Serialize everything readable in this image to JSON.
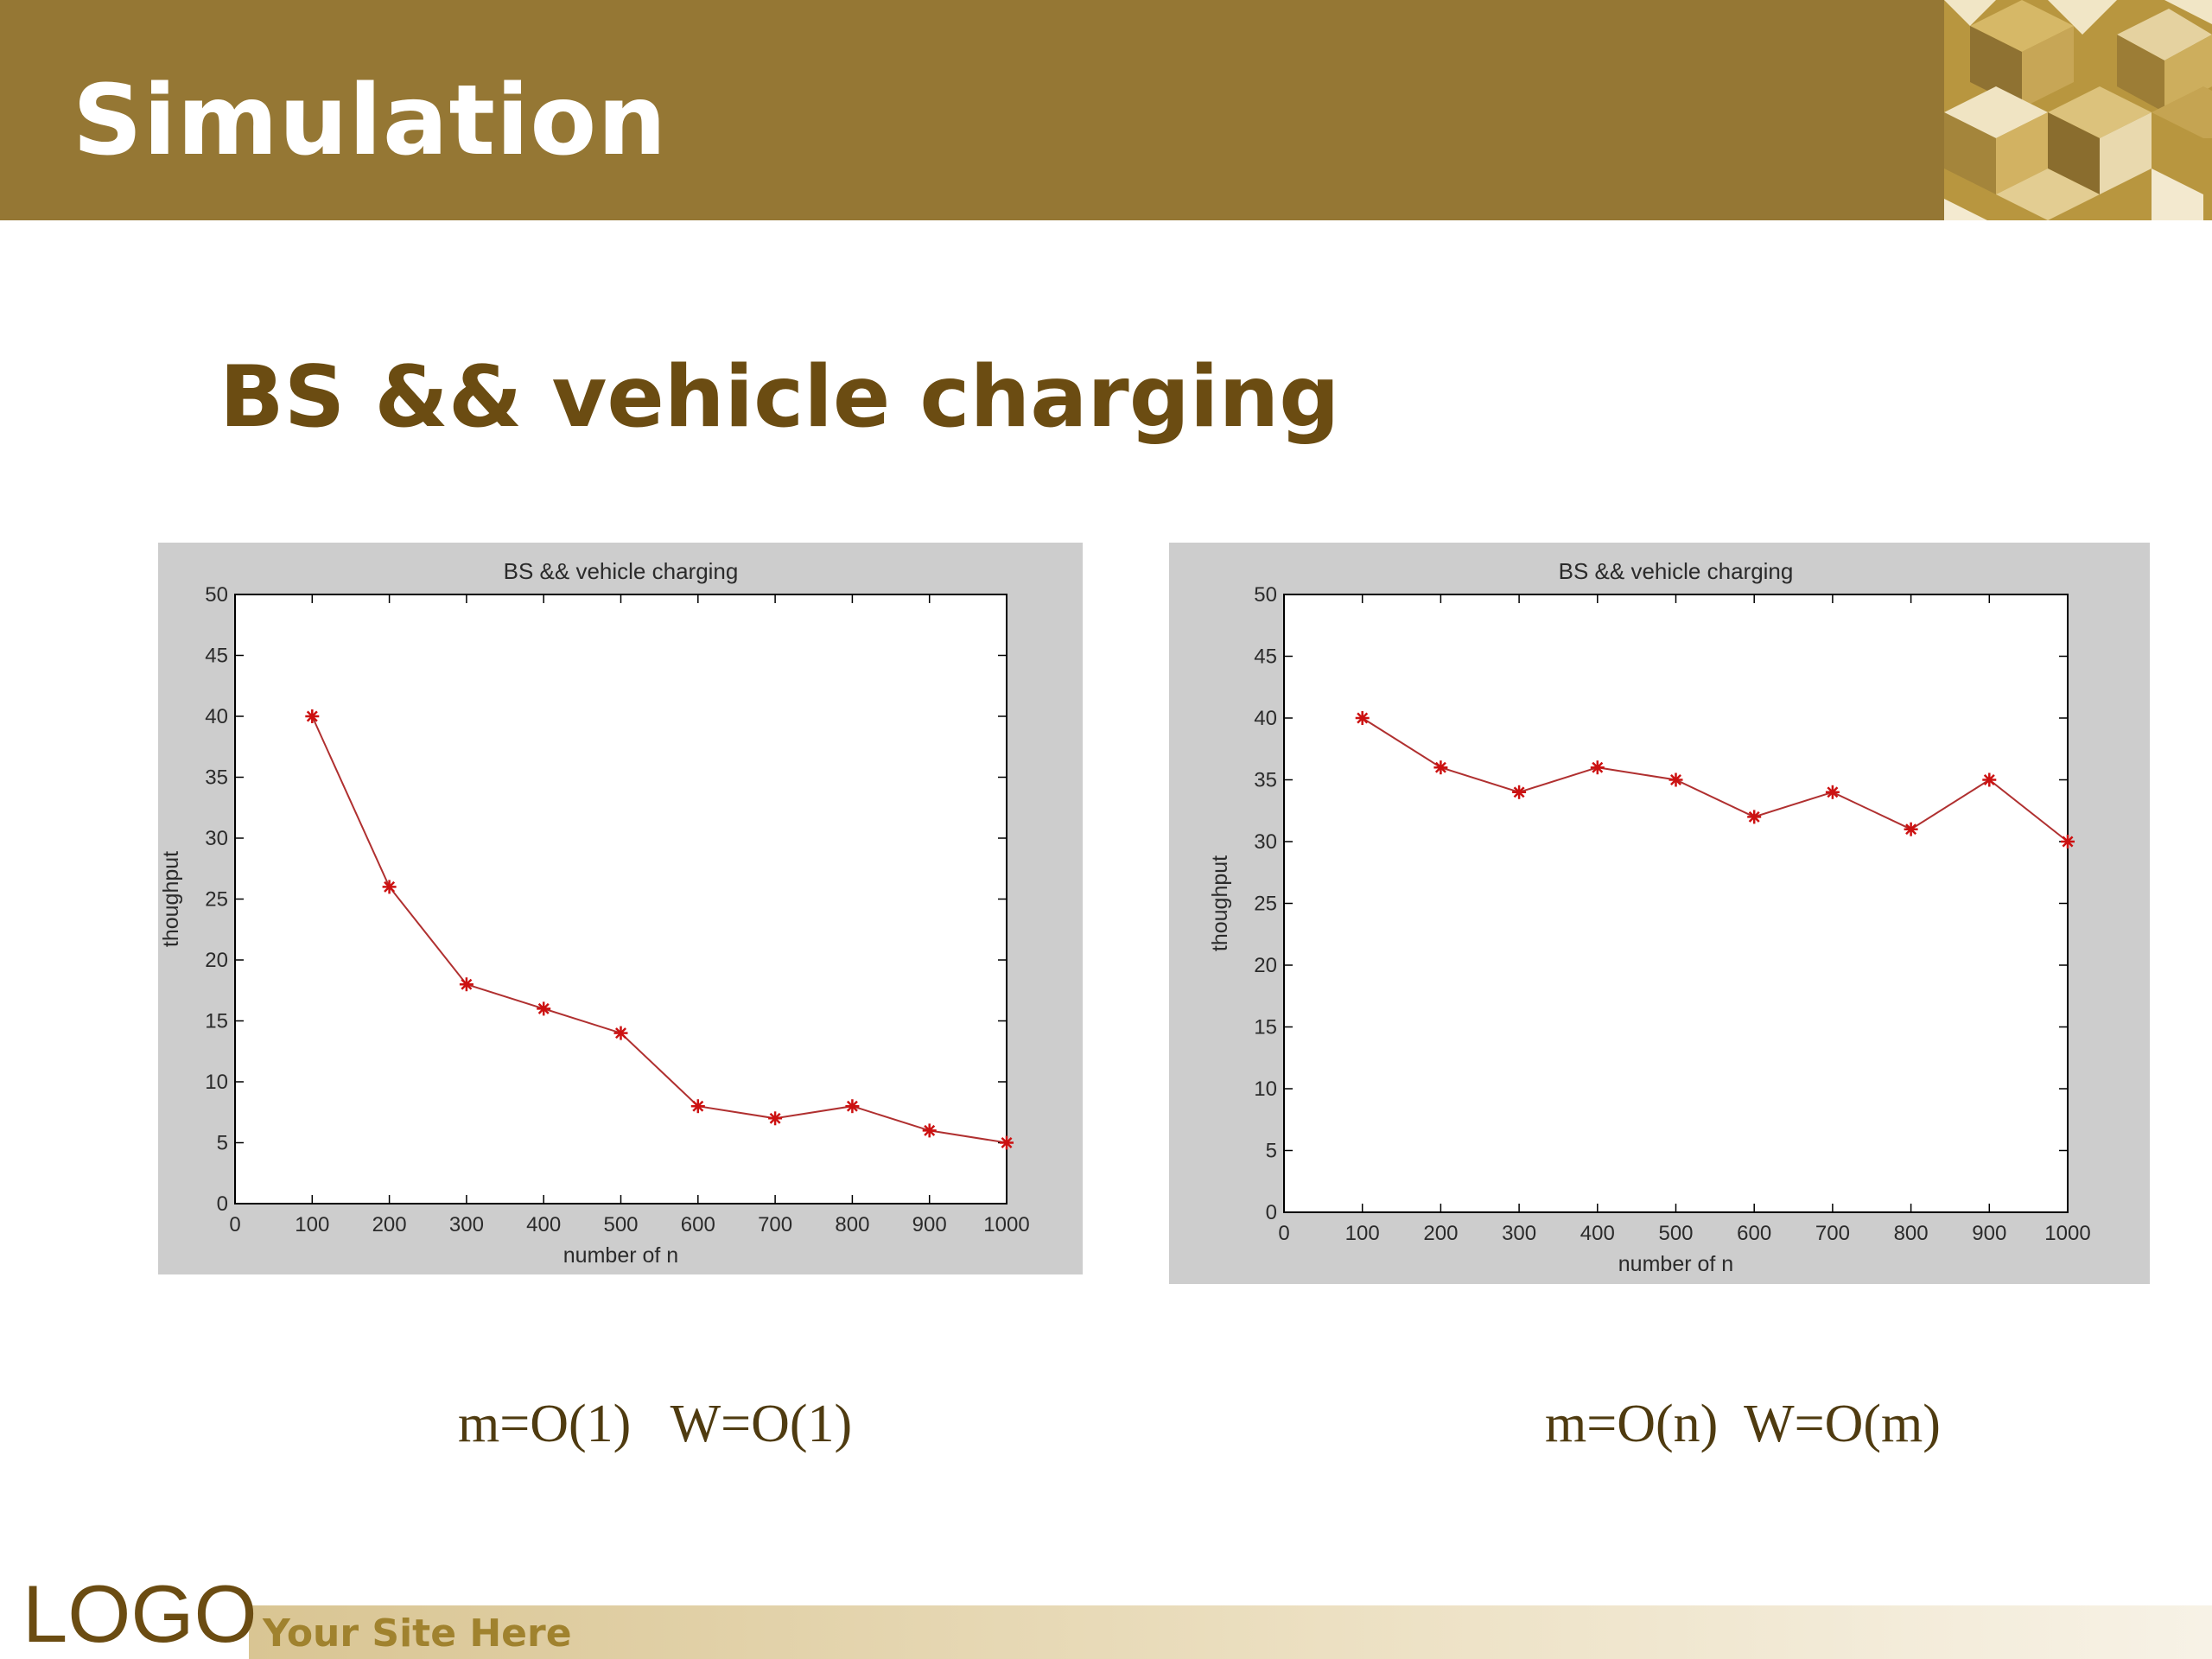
{
  "header": {
    "title": "Simulation"
  },
  "subtitle": "BS && vehicle charging",
  "colors": {
    "header_bg": "#957734",
    "subtitle": "#6b4c12",
    "series_line": "#b03030",
    "series_marker": "#cc1111",
    "panel_bg": "#cdcdcd"
  },
  "chart_data": [
    {
      "type": "line",
      "title": "BS && vehicle charging",
      "xlabel": "number of n",
      "ylabel": "thoughput",
      "xlim": [
        0,
        1000
      ],
      "ylim": [
        0,
        50
      ],
      "x_ticks": [
        0,
        100,
        200,
        300,
        400,
        500,
        600,
        700,
        800,
        900,
        1000
      ],
      "y_ticks": [
        0,
        5,
        10,
        15,
        20,
        25,
        30,
        35,
        40,
        45,
        50
      ],
      "marker": "*",
      "grid": false,
      "x": [
        100,
        200,
        300,
        400,
        500,
        600,
        700,
        800,
        900,
        1000
      ],
      "series": [
        {
          "values": [
            40,
            26,
            18,
            16,
            14,
            8,
            7,
            8,
            6,
            5
          ]
        }
      ]
    },
    {
      "type": "line",
      "title": "BS && vehicle charging",
      "xlabel": "number of n",
      "ylabel": "thoughput",
      "xlim": [
        0,
        1000
      ],
      "ylim": [
        0,
        50
      ],
      "x_ticks": [
        0,
        100,
        200,
        300,
        400,
        500,
        600,
        700,
        800,
        900,
        1000
      ],
      "y_ticks": [
        0,
        5,
        10,
        15,
        20,
        25,
        30,
        35,
        40,
        45,
        50
      ],
      "marker": "*",
      "grid": false,
      "x": [
        100,
        200,
        300,
        400,
        500,
        600,
        700,
        800,
        900,
        1000
      ],
      "series": [
        {
          "values": [
            40,
            36,
            34,
            36,
            35,
            32,
            34,
            31,
            35,
            30
          ]
        }
      ]
    }
  ],
  "captions": [
    "m=O(1)   W=O(1)",
    "m=O(n)  W=O(m)"
  ],
  "footer": {
    "logo": "LOGO",
    "site": "Your Site Here"
  }
}
